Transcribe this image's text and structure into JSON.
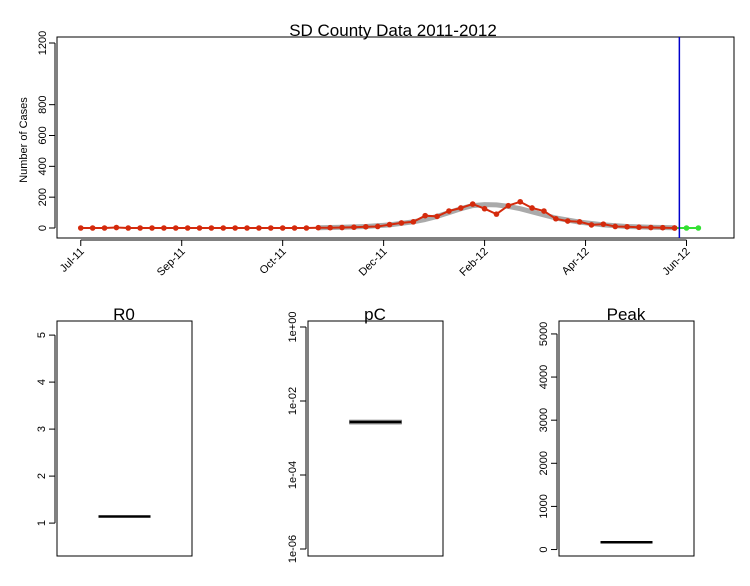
{
  "chart_data": [
    {
      "type": "line",
      "title": "SD County Data 2011-2012",
      "xlabel": "",
      "ylabel": "Number of Cases",
      "ylim": [
        0,
        1200
      ],
      "y_ticks": [
        0,
        200,
        400,
        600,
        800,
        1200
      ],
      "x_tick_labels": [
        "Jul-11",
        "Sep-11",
        "Oct-11",
        "Dec-11",
        "Feb-12",
        "Apr-12",
        "Jun-12"
      ],
      "x_range_weeks": [
        -2,
        55
      ],
      "x_tick_weeks": [
        0,
        8.5,
        17,
        25.5,
        34,
        42.5,
        51
      ],
      "vertical_line_week": 50.4,
      "colors": {
        "observed": "#d42a0c",
        "forecast": "#33e033",
        "fit": "#aaaaaa",
        "vline": "#0000cc"
      },
      "series": [
        {
          "role": "observed",
          "x": [
            0,
            1,
            2,
            3,
            4,
            5,
            6,
            7,
            8,
            9,
            10,
            11,
            12,
            13,
            14,
            15,
            16,
            17,
            18,
            19,
            20,
            21,
            22,
            23,
            24,
            25,
            26,
            27,
            28,
            29,
            30,
            31,
            32,
            33,
            34,
            35,
            36,
            37,
            38,
            39,
            40,
            41,
            42,
            43,
            44,
            45,
            46,
            47,
            48,
            49,
            50
          ],
          "values": [
            0,
            0,
            0,
            3,
            0,
            0,
            0,
            0,
            0,
            0,
            0,
            0,
            0,
            0,
            0,
            0,
            0,
            0,
            0,
            0,
            2,
            2,
            3,
            5,
            8,
            10,
            22,
            33,
            40,
            80,
            75,
            110,
            130,
            155,
            125,
            90,
            145,
            170,
            130,
            110,
            60,
            45,
            40,
            20,
            25,
            10,
            8,
            5,
            3,
            2,
            0
          ]
        },
        {
          "role": "forecast",
          "x": [
            50,
            51,
            52
          ],
          "values": [
            0,
            0,
            0
          ]
        },
        {
          "role": "fit",
          "x": [
            20,
            22,
            24,
            26,
            28,
            29,
            30,
            31,
            32,
            33,
            34,
            35,
            36,
            37,
            38,
            39,
            40,
            42,
            44,
            46,
            48,
            50
          ],
          "values": [
            2,
            5,
            10,
            20,
            40,
            55,
            75,
            100,
            125,
            145,
            152,
            150,
            140,
            125,
            105,
            85,
            65,
            38,
            20,
            10,
            5,
            2
          ]
        }
      ]
    },
    {
      "type": "box",
      "title": "R0",
      "ylim": [
        0.3,
        5.3
      ],
      "y_ticks": [
        1,
        2,
        3,
        4,
        5
      ],
      "median": 1.14
    },
    {
      "type": "box",
      "title": "pC",
      "scale": "log",
      "y_ticks": [
        "1e+00",
        "1e-02",
        "1e-04",
        "1e-06"
      ],
      "y_tick_values": [
        1,
        0.01,
        0.0001,
        1e-06
      ],
      "median": 0.0027
    },
    {
      "type": "box",
      "title": "Peak",
      "ylim": [
        -150,
        5300
      ],
      "y_ticks": [
        0,
        1000,
        2000,
        3000,
        4000,
        5000
      ],
      "median": 170
    }
  ]
}
